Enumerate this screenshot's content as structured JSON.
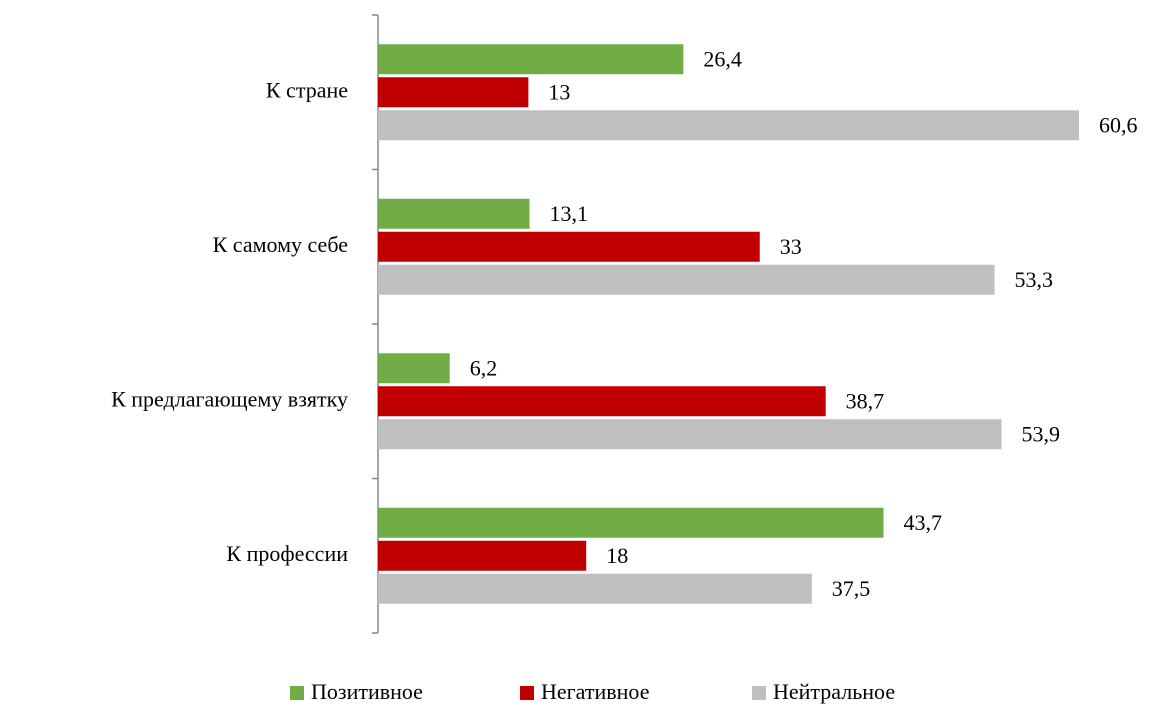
{
  "chart_data": {
    "type": "bar",
    "orientation": "horizontal",
    "categories": [
      "К стране",
      "К самому себе",
      "К предлагающему взятку",
      "К профессии"
    ],
    "series": [
      {
        "name": "Позитивное",
        "color": "#70ad47",
        "values": [
          26.4,
          13.1,
          6.2,
          43.7
        ],
        "value_labels": [
          "26,4",
          "13,1",
          "6,2",
          "43,7"
        ]
      },
      {
        "name": "Негативное",
        "color": "#c00000",
        "values": [
          13,
          33,
          38.7,
          18
        ],
        "value_labels": [
          "13",
          "33",
          "38,7",
          "18"
        ]
      },
      {
        "name": "Нейтральное",
        "color": "#bfbfbf",
        "values": [
          60.6,
          53.3,
          53.9,
          37.5
        ],
        "value_labels": [
          "60,6",
          "53,3",
          "53,9",
          "37,5"
        ]
      }
    ],
    "legend": "bottom"
  }
}
